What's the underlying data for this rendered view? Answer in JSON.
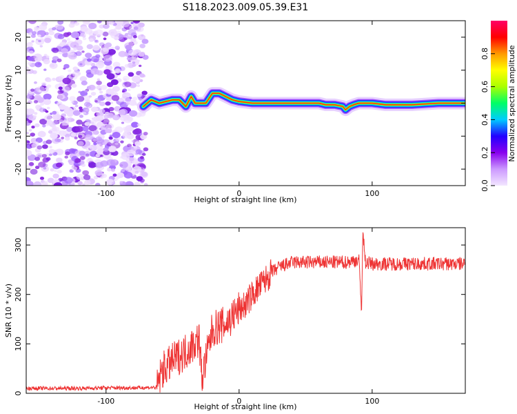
{
  "title": "S118.2023.009.05.39.E31",
  "chart_data": [
    {
      "type": "heatmap",
      "xlabel": "Height of straight line (km)",
      "ylabel": "Frequency (Hz)",
      "xlim": [
        -160,
        170
      ],
      "ylim": [
        -25,
        25
      ],
      "x_ticks": [
        -100,
        0,
        100
      ],
      "y_ticks": [
        -20,
        -10,
        0,
        10,
        20
      ],
      "noise_region_x": [
        -160,
        -70
      ],
      "ridge": {
        "x": [
          -72,
          -66,
          -60,
          -55,
          -50,
          -45,
          -40,
          -36,
          -33,
          -30,
          -28,
          -25,
          -20,
          -15,
          -10,
          -5,
          0,
          10,
          20,
          40,
          60,
          65,
          72,
          78,
          80,
          83,
          86,
          90,
          100,
          110,
          130,
          150,
          170
        ],
        "freq": [
          -1,
          1,
          0,
          0.5,
          1,
          1,
          -1,
          2,
          0,
          0,
          0,
          0,
          3,
          3,
          2,
          1,
          0.5,
          0,
          0,
          0,
          0,
          -0.5,
          -0.5,
          -1,
          -2,
          -1,
          -0.5,
          0,
          0,
          -0.5,
          -0.5,
          0,
          0
        ]
      },
      "colorbar": {
        "label": "Normalized spectral amplitude",
        "range": [
          0,
          1
        ],
        "ticks": [
          "0.0",
          "0.2",
          "0.4",
          "0.6",
          "0.8"
        ],
        "colors": [
          "#f2e6ff",
          "#cc99ff",
          "#8800ee",
          "#2200ff",
          "#00ccff",
          "#00ff66",
          "#aaff00",
          "#ffff00",
          "#ff9900",
          "#ff0000",
          "#ff0066"
        ]
      }
    },
    {
      "type": "line",
      "xlabel": "Height of straight line (km)",
      "ylabel": "SNR (10 * v/v)",
      "xlim": [
        -160,
        170
      ],
      "ylim": [
        0,
        335
      ],
      "x_ticks": [
        -100,
        0,
        100
      ],
      "y_ticks": [
        0,
        100,
        200,
        300
      ],
      "color": "#ee3333",
      "x": [
        -160,
        -140,
        -120,
        -100,
        -80,
        -62,
        -58,
        -50,
        -40,
        -30,
        -28,
        -20,
        -10,
        0,
        5,
        10,
        15,
        20,
        25,
        30,
        40,
        60,
        80,
        90,
        92,
        93,
        95,
        100,
        120,
        140,
        170
      ],
      "y": [
        10,
        10,
        10,
        11,
        11,
        12,
        45,
        65,
        85,
        110,
        30,
        130,
        140,
        170,
        180,
        200,
        215,
        230,
        245,
        255,
        265,
        265,
        265,
        270,
        170,
        325,
        265,
        262,
        262,
        262,
        262
      ]
    }
  ]
}
